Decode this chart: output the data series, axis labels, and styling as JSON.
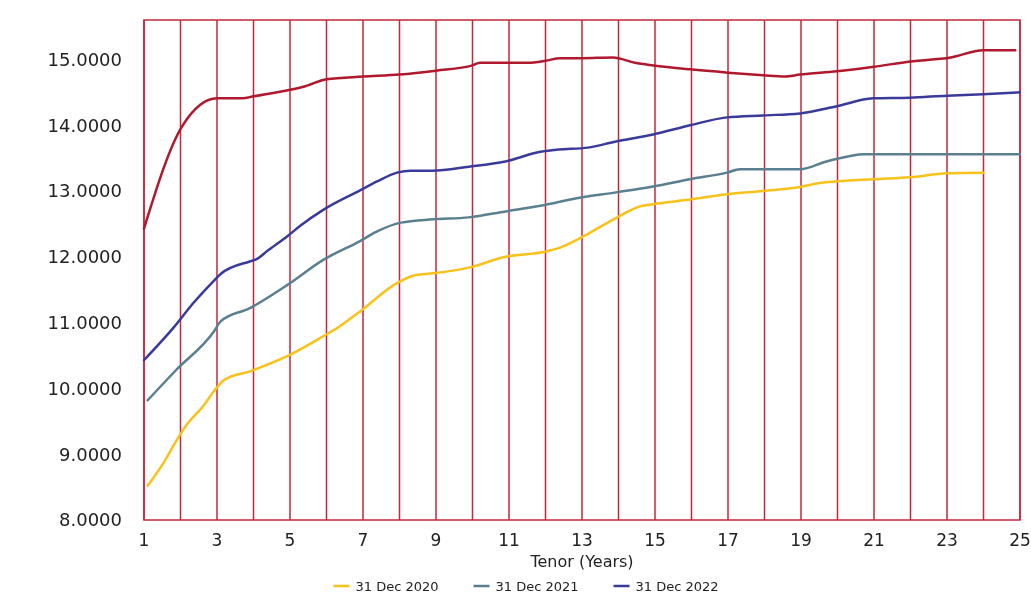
{
  "chart_data": {
    "type": "line",
    "xlabel": "Tenor (Years)",
    "xlim": [
      1,
      25
    ],
    "ylim": [
      8,
      15.6
    ],
    "xticks": [
      1,
      {
        "value": 2,
        "label": null
      },
      3,
      {
        "value": 4,
        "label": null
      },
      5,
      {
        "value": 6,
        "label": null
      },
      7,
      {
        "value": 8,
        "label": null
      },
      9,
      {
        "value": 10,
        "label": null
      },
      11,
      {
        "value": 12,
        "label": null
      },
      13,
      {
        "value": 14,
        "label": null
      },
      15,
      {
        "value": 16,
        "label": null
      },
      17,
      {
        "value": 18,
        "label": null
      },
      19,
      {
        "value": 20,
        "label": null
      },
      21,
      {
        "value": 22,
        "label": null
      },
      23,
      {
        "value": 24,
        "label": null
      },
      25
    ],
    "yticks": [
      {
        "value": 8,
        "label": "8.0000"
      },
      {
        "value": 9,
        "label": "9.0000"
      },
      {
        "value": 10,
        "label": "10.0000"
      },
      {
        "value": 11,
        "label": "11.0000"
      },
      {
        "value": 12,
        "label": "12.0000"
      },
      {
        "value": 13,
        "label": "13.0000"
      },
      {
        "value": 14,
        "label": "14.0000"
      },
      {
        "value": 15,
        "label": "15.0000"
      }
    ],
    "grid": "x",
    "legend": "bottom",
    "marker": "none",
    "line_style": "solid",
    "series": [
      {
        "name": "31 Dec 2020",
        "color": "#f9c21b",
        "x": [
          1.1,
          1.57,
          1.88,
          2.2,
          2.62,
          2.92,
          3.2,
          3.9,
          4.92,
          5.9,
          6.3,
          6.92,
          7.93,
          8.42,
          8.92,
          9.93,
          10.9,
          11.9,
          12.4,
          13.1,
          13.93,
          14.6,
          14.95,
          15.96,
          16.97,
          17.96,
          18.97,
          19.47,
          20.97,
          21.98,
          23.0,
          23.99
        ],
        "values": [
          8.52,
          8.9,
          9.2,
          9.47,
          9.73,
          9.96,
          10.13,
          10.26,
          10.49,
          10.79,
          10.92,
          11.17,
          11.6,
          11.72,
          11.75,
          11.84,
          12.0,
          12.07,
          12.14,
          12.33,
          12.59,
          12.77,
          12.8,
          12.87,
          12.95,
          13.0,
          13.06,
          13.12,
          13.18,
          13.21,
          13.27,
          13.28
        ]
      },
      {
        "name": "31 Dec 2021",
        "color": "#5a7f8f",
        "x": [
          1.1,
          1.88,
          2.92,
          3.1,
          3.9,
          4.92,
          5.9,
          6.92,
          7.4,
          8.04,
          8.9,
          9.9,
          10.9,
          11.9,
          12.85,
          13.93,
          14.95,
          15.96,
          16.97,
          17.33,
          18.97,
          19.7,
          20.75,
          25
        ],
        "values": [
          9.82,
          10.28,
          10.87,
          11.02,
          11.22,
          11.57,
          11.95,
          12.24,
          12.39,
          12.52,
          12.57,
          12.6,
          12.69,
          12.78,
          12.89,
          12.98,
          13.07,
          13.18,
          13.28,
          13.33,
          13.33,
          13.45,
          13.56,
          13.56
        ]
      },
      {
        "name": "31 Dec 2022",
        "color": "#3a3a9a",
        "x": [
          1.0,
          1.85,
          2.34,
          2.92,
          3.1,
          3.9,
          4.07,
          4.4,
          4.92,
          5.3,
          5.9,
          6.92,
          7.4,
          7.93,
          8.3,
          8.9,
          9.9,
          10.9,
          11.9,
          12.35,
          13.16,
          13.9,
          14.95,
          15.96,
          16.97,
          17.96,
          18.97,
          19.98,
          20.97,
          21.98,
          23.0,
          23.99,
          25
        ],
        "values": [
          10.43,
          10.95,
          11.29,
          11.64,
          11.74,
          11.93,
          11.96,
          12.1,
          12.31,
          12.48,
          12.71,
          13.01,
          13.15,
          13.28,
          13.31,
          13.31,
          13.37,
          13.45,
          13.6,
          13.63,
          13.66,
          13.75,
          13.86,
          14.0,
          14.12,
          14.15,
          14.18,
          14.29,
          14.41,
          14.42,
          14.45,
          14.47,
          14.5
        ]
      },
      {
        "color": "#b0182e",
        "x": [
          1.0,
          2.04,
          3.0,
          3.7,
          4.0,
          5.0,
          5.4,
          6.0,
          7.0,
          8.0,
          9.0,
          10.0,
          10.2,
          11.5,
          12.0,
          12.4,
          13.0,
          13.85,
          14.45,
          14.95,
          15.96,
          17.0,
          17.96,
          18.56,
          18.97,
          19.98,
          21.0,
          22.0,
          23.1,
          23.99,
          24.87
        ],
        "values": [
          12.43,
          13.98,
          14.41,
          14.41,
          14.44,
          14.54,
          14.59,
          14.7,
          14.74,
          14.77,
          14.83,
          14.91,
          14.95,
          14.95,
          14.98,
          15.02,
          15.02,
          15.03,
          14.95,
          14.91,
          14.85,
          14.8,
          14.76,
          14.74,
          14.77,
          14.82,
          14.89,
          14.97,
          15.03,
          15.14,
          15.14
        ]
      }
    ]
  }
}
